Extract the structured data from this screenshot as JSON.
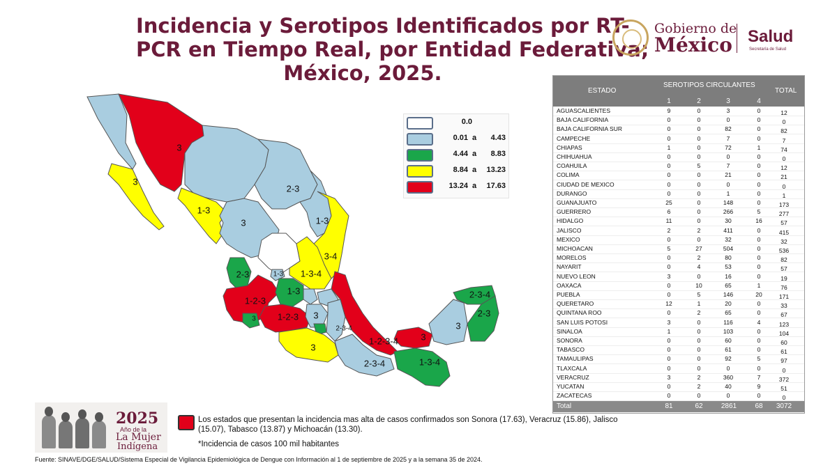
{
  "title": {
    "line1": "Incidencia y Serotipos Identificados por RT-",
    "line2": "PCR en Tiempo Real, por Entidad Federativa;",
    "line3": "México, 2025."
  },
  "logos": {
    "gobierno_top": "Gobierno de",
    "gobierno_bottom": "México",
    "salud": "Salud",
    "salud_sub": "Secretaría de Salud"
  },
  "colors": {
    "white": "#ffffff",
    "light_blue": "#a9cde0",
    "green": "#1aa64a",
    "yellow": "#ffff00",
    "red": "#e2001a",
    "title": "#6b1b3a"
  },
  "legend": [
    {
      "color": "#ffffff",
      "low": "",
      "sep": "",
      "high": "0.0"
    },
    {
      "color": "#a9cde0",
      "low": "0.01",
      "sep": "a",
      "high": "4.43"
    },
    {
      "color": "#1aa64a",
      "low": "4.44",
      "sep": "a",
      "high": "8.83"
    },
    {
      "color": "#ffff00",
      "low": "8.84",
      "sep": "a",
      "high": "13.23"
    },
    {
      "color": "#e2001a",
      "low": "13.24",
      "sep": "a",
      "high": "17.63"
    }
  ],
  "map_labels": [
    "3",
    "3",
    "1-3",
    "3",
    "2-3",
    "1-3",
    "3-4",
    "1-3-4",
    "2-3",
    "1-3",
    "1-3",
    "1-2-3",
    "3",
    "1-2-3",
    "3",
    "1-2-3-4",
    "2-3-4",
    "2-3-4",
    "3",
    "1-3-4",
    "3",
    "2-3-4",
    "2-3",
    "3"
  ],
  "table": {
    "header_estado": "ESTADO",
    "header_serotipos": "SEROTIPOS CIRCULANTES",
    "header_total": "TOTAL",
    "serotype_numbers": [
      "1",
      "2",
      "3",
      "4"
    ],
    "rows": [
      {
        "estado": "AGUASCALIENTES",
        "s1": "9",
        "s2": "0",
        "s3": "3",
        "s4": "0",
        "total": "12"
      },
      {
        "estado": "BAJA CALIFORNIA",
        "s1": "0",
        "s2": "0",
        "s3": "0",
        "s4": "0",
        "total": "0"
      },
      {
        "estado": "BAJA CALIFORNIA SUR",
        "s1": "0",
        "s2": "0",
        "s3": "82",
        "s4": "0",
        "total": "82"
      },
      {
        "estado": "CAMPECHE",
        "s1": "0",
        "s2": "0",
        "s3": "7",
        "s4": "0",
        "total": "7"
      },
      {
        "estado": "CHIAPAS",
        "s1": "1",
        "s2": "0",
        "s3": "72",
        "s4": "1",
        "total": "74"
      },
      {
        "estado": "CHIHUAHUA",
        "s1": "0",
        "s2": "0",
        "s3": "0",
        "s4": "0",
        "total": "0"
      },
      {
        "estado": "COAHUILA",
        "s1": "0",
        "s2": "5",
        "s3": "7",
        "s4": "0",
        "total": "12"
      },
      {
        "estado": "COLIMA",
        "s1": "0",
        "s2": "0",
        "s3": "21",
        "s4": "0",
        "total": "21"
      },
      {
        "estado": "CIUDAD DE MEXICO",
        "s1": "0",
        "s2": "0",
        "s3": "0",
        "s4": "0",
        "total": "0"
      },
      {
        "estado": "DURANGO",
        "s1": "0",
        "s2": "0",
        "s3": "1",
        "s4": "0",
        "total": "1"
      },
      {
        "estado": "GUANAJUATO",
        "s1": "25",
        "s2": "0",
        "s3": "148",
        "s4": "0",
        "total": "173"
      },
      {
        "estado": "GUERRERO",
        "s1": "6",
        "s2": "0",
        "s3": "266",
        "s4": "5",
        "total": "277"
      },
      {
        "estado": "HIDALGO",
        "s1": "11",
        "s2": "0",
        "s3": "30",
        "s4": "16",
        "total": "57"
      },
      {
        "estado": "JALISCO",
        "s1": "2",
        "s2": "2",
        "s3": "411",
        "s4": "0",
        "total": "415"
      },
      {
        "estado": "MEXICO",
        "s1": "0",
        "s2": "0",
        "s3": "32",
        "s4": "0",
        "total": "32"
      },
      {
        "estado": "MICHOACAN",
        "s1": "5",
        "s2": "27",
        "s3": "504",
        "s4": "0",
        "total": "536"
      },
      {
        "estado": "MORELOS",
        "s1": "0",
        "s2": "2",
        "s3": "80",
        "s4": "0",
        "total": "82"
      },
      {
        "estado": "NAYARIT",
        "s1": "0",
        "s2": "4",
        "s3": "53",
        "s4": "0",
        "total": "57"
      },
      {
        "estado": "NUEVO LEON",
        "s1": "3",
        "s2": "0",
        "s3": "16",
        "s4": "0",
        "total": "19"
      },
      {
        "estado": "OAXACA",
        "s1": "0",
        "s2": "10",
        "s3": "65",
        "s4": "1",
        "total": "76"
      },
      {
        "estado": "PUEBLA",
        "s1": "0",
        "s2": "5",
        "s3": "146",
        "s4": "20",
        "total": "171"
      },
      {
        "estado": "QUERETARO",
        "s1": "12",
        "s2": "1",
        "s3": "20",
        "s4": "0",
        "total": "33"
      },
      {
        "estado": "QUINTANA ROO",
        "s1": "0",
        "s2": "2",
        "s3": "65",
        "s4": "0",
        "total": "67"
      },
      {
        "estado": "SAN LUIS POTOSI",
        "s1": "3",
        "s2": "0",
        "s3": "116",
        "s4": "4",
        "total": "123"
      },
      {
        "estado": "SINALOA",
        "s1": "1",
        "s2": "0",
        "s3": "103",
        "s4": "0",
        "total": "104"
      },
      {
        "estado": "SONORA",
        "s1": "0",
        "s2": "0",
        "s3": "60",
        "s4": "0",
        "total": "60"
      },
      {
        "estado": "TABASCO",
        "s1": "0",
        "s2": "0",
        "s3": "61",
        "s4": "0",
        "total": "61"
      },
      {
        "estado": "TAMAULIPAS",
        "s1": "0",
        "s2": "0",
        "s3": "92",
        "s4": "5",
        "total": "97"
      },
      {
        "estado": "TLAXCALA",
        "s1": "0",
        "s2": "0",
        "s3": "0",
        "s4": "0",
        "total": "0"
      },
      {
        "estado": "VERACRUZ",
        "s1": "3",
        "s2": "2",
        "s3": "360",
        "s4": "7",
        "total": "372"
      },
      {
        "estado": "YUCATAN",
        "s1": "0",
        "s2": "2",
        "s3": "40",
        "s4": "9",
        "total": "51"
      },
      {
        "estado": "ZACATECAS",
        "s1": "0",
        "s2": "0",
        "s3": "0",
        "s4": "0",
        "total": "0"
      }
    ],
    "footer": {
      "label": "Total",
      "s1": "81",
      "s2": "62",
      "s3": "2861",
      "s4": "68",
      "total": "3072"
    }
  },
  "banner": {
    "year": "2025",
    "line2": "Año de la",
    "line3": "La Mujer",
    "line4": "Indígena"
  },
  "note": "Los estados que presentan la incidencia mas alta de casos confirmados son Sonora (17.63), Veracruz (15.86), Jalisco (15.07), Tabasco (13.87) y Michoacán (13.30).",
  "note2": "*Incidencia de casos 100 mil habitantes",
  "source": "Fuente: SINAVE/DGE/SALUD/Sistema Especial de Vigilancia Epidemiológica de Dengue con Información al 1 de septiembre de 2025 y a la semana 35 de 2024."
}
